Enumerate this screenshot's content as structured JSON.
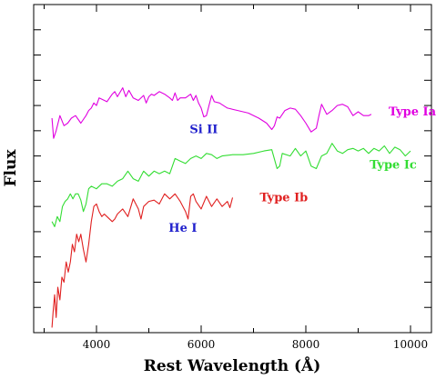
{
  "chart_data": {
    "type": "line",
    "title": "",
    "xlabel": "Rest Wavelength (Å)",
    "ylabel": "Flux",
    "xlim": [
      2800,
      10400
    ],
    "ylim": [
      0,
      13
    ],
    "x_ticks": [
      4000,
      6000,
      8000,
      10000
    ],
    "x_minor_step": 1000,
    "y_ticks_labeled": false,
    "y_tick_step": 1,
    "grid": false,
    "legend": "none",
    "series": [
      {
        "name": "Type Ia",
        "color": "#e000e0",
        "x": [
          3150,
          3180,
          3230,
          3300,
          3380,
          3450,
          3520,
          3600,
          3700,
          3800,
          3850,
          3900,
          3950,
          4000,
          4050,
          4100,
          4200,
          4300,
          4350,
          4400,
          4500,
          4560,
          4620,
          4700,
          4800,
          4900,
          4950,
          5000,
          5050,
          5100,
          5200,
          5300,
          5400,
          5450,
          5500,
          5550,
          5600,
          5700,
          5800,
          5850,
          5900,
          5950,
          6000,
          6050,
          6100,
          6150,
          6200,
          6250,
          6350,
          6500,
          6700,
          6900,
          7100,
          7250,
          7350,
          7400,
          7450,
          7500,
          7600,
          7700,
          7800,
          7900,
          8000,
          8100,
          8200,
          8250,
          8300,
          8400,
          8500,
          8600,
          8700,
          8800,
          8900,
          9000,
          9100,
          9200,
          9250
        ],
        "values": [
          8.5,
          7.7,
          8.0,
          8.6,
          8.2,
          8.3,
          8.5,
          8.6,
          8.3,
          8.6,
          8.8,
          8.9,
          9.1,
          9.0,
          9.3,
          9.25,
          9.15,
          9.45,
          9.55,
          9.35,
          9.7,
          9.35,
          9.6,
          9.3,
          9.2,
          9.4,
          9.1,
          9.35,
          9.45,
          9.4,
          9.55,
          9.45,
          9.3,
          9.2,
          9.5,
          9.2,
          9.3,
          9.3,
          9.45,
          9.2,
          9.4,
          9.1,
          8.9,
          8.55,
          8.6,
          9.0,
          9.4,
          9.15,
          9.1,
          8.9,
          8.8,
          8.7,
          8.5,
          8.3,
          8.05,
          8.2,
          8.55,
          8.5,
          8.8,
          8.9,
          8.85,
          8.6,
          8.3,
          7.95,
          8.1,
          8.6,
          9.05,
          8.65,
          8.8,
          9.0,
          9.05,
          8.95,
          8.6,
          8.75,
          8.6,
          8.6,
          8.65
        ]
      },
      {
        "name": "Type Ic",
        "color": "#33dd33",
        "x": [
          3150,
          3200,
          3250,
          3300,
          3350,
          3400,
          3450,
          3500,
          3550,
          3600,
          3650,
          3700,
          3750,
          3800,
          3850,
          3900,
          4000,
          4100,
          4200,
          4300,
          4400,
          4500,
          4600,
          4700,
          4800,
          4900,
          5000,
          5100,
          5200,
          5300,
          5400,
          5500,
          5600,
          5700,
          5800,
          5900,
          6000,
          6100,
          6200,
          6300,
          6400,
          6600,
          6800,
          7000,
          7200,
          7350,
          7450,
          7500,
          7550,
          7700,
          7800,
          7900,
          8000,
          8100,
          8200,
          8300,
          8400,
          8500,
          8600,
          8700,
          8800,
          8900,
          9000,
          9100,
          9200,
          9300,
          9400,
          9500,
          9600,
          9700,
          9800,
          9900,
          10000
        ],
        "values": [
          4.4,
          4.2,
          4.6,
          4.4,
          5.0,
          5.2,
          5.3,
          5.5,
          5.3,
          5.5,
          5.5,
          5.25,
          4.8,
          5.1,
          5.7,
          5.8,
          5.7,
          5.9,
          5.9,
          5.8,
          6.0,
          6.1,
          6.4,
          6.1,
          6.0,
          6.4,
          6.2,
          6.4,
          6.3,
          6.4,
          6.3,
          6.9,
          6.8,
          6.7,
          6.9,
          7.0,
          6.9,
          7.1,
          7.05,
          6.9,
          7.0,
          7.05,
          7.05,
          7.1,
          7.2,
          7.25,
          6.5,
          6.6,
          7.1,
          7.0,
          7.3,
          7.0,
          7.2,
          6.6,
          6.5,
          7.0,
          7.1,
          7.5,
          7.2,
          7.1,
          7.25,
          7.3,
          7.2,
          7.3,
          7.1,
          7.3,
          7.2,
          7.4,
          7.1,
          7.35,
          7.25,
          7.0,
          7.2
        ]
      },
      {
        "name": "Type Ib",
        "color": "#e02020",
        "x": [
          3150,
          3170,
          3200,
          3230,
          3260,
          3300,
          3340,
          3380,
          3420,
          3460,
          3500,
          3540,
          3580,
          3620,
          3660,
          3700,
          3750,
          3800,
          3850,
          3900,
          3950,
          4000,
          4050,
          4100,
          4150,
          4200,
          4300,
          4350,
          4400,
          4500,
          4600,
          4700,
          4800,
          4850,
          4900,
          5000,
          5100,
          5200,
          5300,
          5400,
          5500,
          5600,
          5700,
          5750,
          5800,
          5850,
          5900,
          6000,
          6100,
          6200,
          6300,
          6400,
          6500,
          6550,
          6600
        ],
        "values": [
          0.2,
          0.8,
          1.5,
          0.6,
          1.8,
          1.3,
          2.2,
          2.0,
          2.8,
          2.4,
          2.8,
          3.5,
          3.2,
          3.9,
          3.6,
          3.9,
          3.3,
          2.8,
          3.5,
          4.4,
          5.0,
          5.1,
          4.8,
          4.6,
          4.7,
          4.6,
          4.4,
          4.5,
          4.7,
          4.9,
          4.6,
          5.3,
          4.9,
          4.5,
          5.0,
          5.2,
          5.25,
          5.1,
          5.5,
          5.3,
          5.5,
          5.2,
          4.8,
          4.5,
          5.4,
          5.5,
          5.2,
          4.9,
          5.4,
          5.0,
          5.3,
          5.0,
          5.2,
          4.95,
          5.35
        ]
      }
    ],
    "series_labels": [
      {
        "text": "Type Ia",
        "series": "Type Ia",
        "at": [
          9580,
          8.6
        ]
      },
      {
        "text": "Type Ic",
        "series": "Type Ic",
        "at": [
          9220,
          6.5
        ]
      },
      {
        "text": "Type Ib",
        "series": "Type Ib",
        "at": [
          7120,
          5.2
        ]
      }
    ],
    "annotations": [
      {
        "text": "Si II",
        "color": "#2020cc",
        "at": [
          6050,
          7.9
        ]
      },
      {
        "text": "He I",
        "color": "#2020cc",
        "at": [
          5650,
          4.0
        ]
      }
    ]
  }
}
